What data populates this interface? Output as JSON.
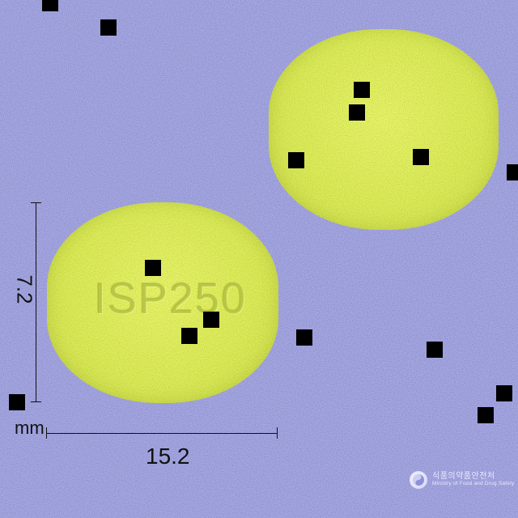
{
  "image": {
    "subject": "two tablets",
    "background_color": "#a6a8e6",
    "tablet_color": "#dbeb5a"
  },
  "tablet_front": {
    "imprint": "ISP250"
  },
  "tablet_back": {
    "imprint": ""
  },
  "dimensions": {
    "height_value": "7.2",
    "width_value": "15.2",
    "unit": "mm"
  },
  "logo": {
    "korean_text": "식품의약품안전처",
    "english_text": "Ministry of Food and Drug Safety",
    "icon": "mfds-emblem-icon"
  }
}
